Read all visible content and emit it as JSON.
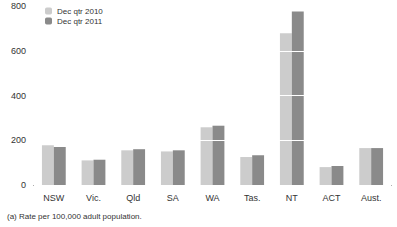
{
  "chart_data": {
    "type": "bar",
    "categories": [
      "NSW",
      "Vic.",
      "Qld",
      "SA",
      "WA",
      "Tas.",
      "NT",
      "ACT",
      "Aust."
    ],
    "series": [
      {
        "name": "Dec qtr 2010",
        "color": "#cccccc",
        "values": [
          178,
          110,
          155,
          150,
          258,
          125,
          678,
          80,
          165
        ]
      },
      {
        "name": "Dec qtr 2011",
        "color": "#8a8a8a",
        "values": [
          170,
          113,
          160,
          155,
          265,
          133,
          775,
          85,
          165
        ]
      }
    ],
    "ylim": [
      0,
      800
    ],
    "yticks": [
      0,
      200,
      400,
      600,
      800
    ],
    "grid": true,
    "legend": "top-left",
    "annotation": "(a) Rate per 100,000 adult population."
  }
}
